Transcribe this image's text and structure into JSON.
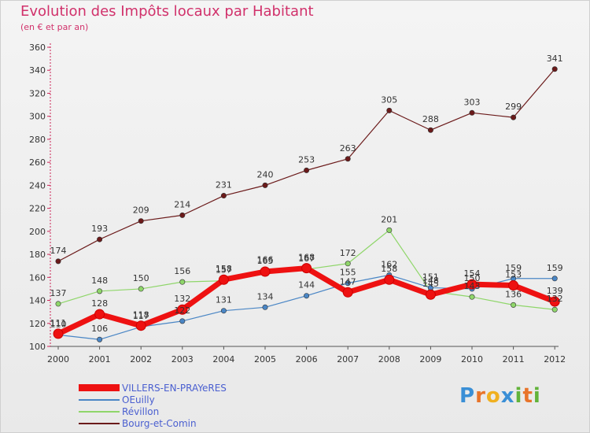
{
  "header": {
    "title": "Evolution des Impôts locaux par Habitant",
    "subtitle": "(en € et par an)"
  },
  "logo": {
    "text": "Proxiti",
    "letters": [
      "P",
      "r",
      "o",
      "x",
      "i",
      "t",
      "i"
    ],
    "colors": [
      "#3a8fd6",
      "#e8742a",
      "#f0b020",
      "#3a8fd6",
      "#62b33a",
      "#e8742a",
      "#62b33a"
    ]
  },
  "chart_data": {
    "type": "line",
    "title": "Evolution des Impôts locaux par Habitant",
    "subtitle": "(en € et par an)",
    "xlabel": "",
    "ylabel": "",
    "ylim": [
      100,
      360
    ],
    "ytick_step": 20,
    "grid": false,
    "legend_position": "bottom-left",
    "categories": [
      "2000",
      "2001",
      "2002",
      "2003",
      "2004",
      "2005",
      "2006",
      "2007",
      "2008",
      "2009",
      "2010",
      "2011",
      "2012"
    ],
    "series": [
      {
        "name": "VILLERS-EN-PRAYeRES",
        "color": "#ee1111",
        "width": "thick",
        "values": [
          111,
          128,
          118,
          132,
          158,
          165,
          168,
          147,
          158,
          145,
          154,
          153,
          139
        ]
      },
      {
        "name": "OEuilly",
        "color": "#4a86c5",
        "width": "thin",
        "values": [
          110,
          106,
          117,
          122,
          131,
          134,
          144,
          155,
          162,
          151,
          150,
          159,
          159
        ]
      },
      {
        "name": "Révillon",
        "color": "#8fd66a",
        "width": "thin",
        "values": [
          137,
          148,
          150,
          156,
          157,
          166,
          167,
          172,
          201,
          148,
          143,
          136,
          132
        ]
      },
      {
        "name": "Bourg-et-Comin",
        "color": "#6b1a1a",
        "width": "thin",
        "values": [
          174,
          193,
          209,
          214,
          231,
          240,
          253,
          263,
          305,
          288,
          303,
          299,
          341
        ]
      }
    ]
  }
}
